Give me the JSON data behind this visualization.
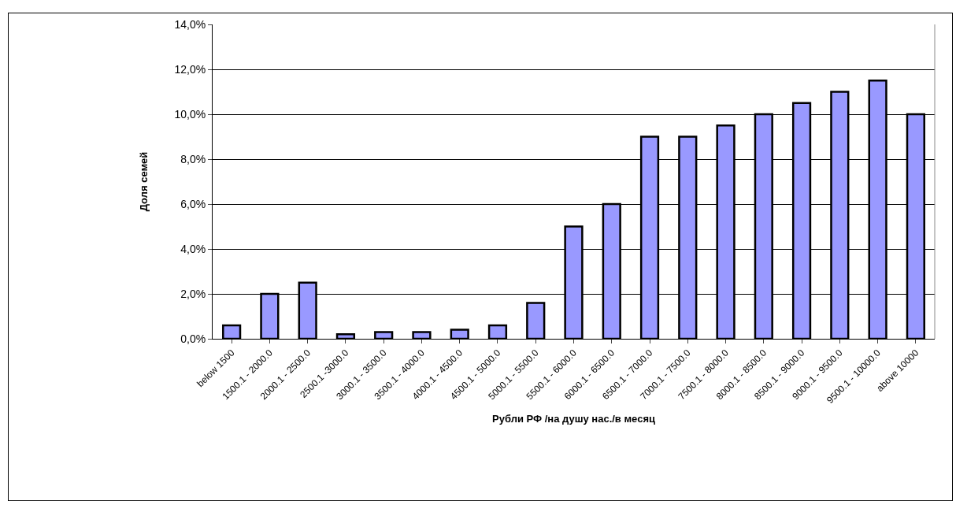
{
  "chart_data": {
    "type": "bar",
    "xlabel": "Рубли РФ /на душу нас./в месяц",
    "ylabel": "Доля семей",
    "categories": [
      "below 1500",
      "1500.1 - 2000.0",
      "2000.1 - 2500.0",
      "2500.1 -3000.0",
      "3000.1 - 3500.0",
      "3500.1 - 4000.0",
      "4000.1 - 4500.0",
      "4500.1 - 5000.0",
      "5000.1 - 5500.0",
      "5500.1 - 6000.0",
      "6000.1 - 6500.0",
      "6500.1 - 7000.0",
      "7000.1 - 7500.0",
      "7500.1 - 8000.0",
      "8000.1 - 8500.0",
      "8500.1 - 9000.0",
      "9000.1 - 9500.0",
      "9500.1 - 10000.0",
      "above 10000"
    ],
    "values": [
      0.6,
      2.0,
      2.5,
      0.2,
      0.3,
      0.3,
      0.4,
      0.6,
      1.6,
      5.0,
      6.0,
      9.0,
      9.0,
      9.5,
      10.0,
      10.5,
      11.0,
      11.5,
      10.0
    ],
    "color": "#9999ff",
    "ylim": [
      0,
      14
    ],
    "yticks": [
      {
        "value": 0,
        "label": "0,0%"
      },
      {
        "value": 2,
        "label": "2,0%"
      },
      {
        "value": 4,
        "label": "4,0%"
      },
      {
        "value": 6,
        "label": "6,0%"
      },
      {
        "value": 8,
        "label": "8,0%"
      },
      {
        "value": 10,
        "label": "10,0%"
      },
      {
        "value": 12,
        "label": "12,0%"
      },
      {
        "value": 14,
        "label": "14,0%"
      }
    ],
    "grid": "y"
  }
}
